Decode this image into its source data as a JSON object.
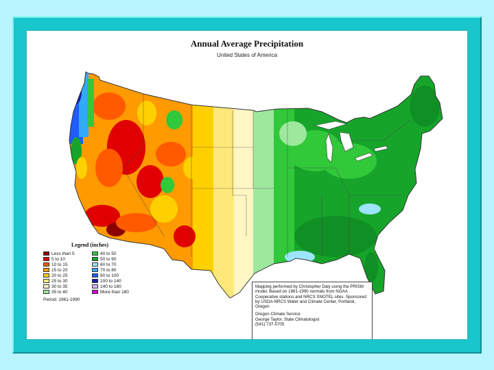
{
  "title": "Annual Average Precipitation",
  "subtitle": "United States of America",
  "legend": {
    "title": "Legend (inches)",
    "period": "Period: 1961-1990",
    "items": [
      {
        "label": "Less than 5",
        "color": "#8b0000"
      },
      {
        "label": "5 to 10",
        "color": "#e00000"
      },
      {
        "label": "10 to 15",
        "color": "#ff5a00"
      },
      {
        "label": "15 to 20",
        "color": "#ff9a00"
      },
      {
        "label": "20 to 25",
        "color": "#ffd000"
      },
      {
        "label": "25 to 30",
        "color": "#ffe87a"
      },
      {
        "label": "30 to 35",
        "color": "#fff6c4"
      },
      {
        "label": "35 to 40",
        "color": "#9ee89e"
      },
      {
        "label": "40 to 50",
        "color": "#31c83a"
      },
      {
        "label": "50 to 60",
        "color": "#16a52a"
      },
      {
        "label": "60 to 70",
        "color": "#9de4ff"
      },
      {
        "label": "70 to 80",
        "color": "#33a8ff"
      },
      {
        "label": "80 to 100",
        "color": "#1f5bff"
      },
      {
        "label": "100 to 140",
        "color": "#1b1bb0"
      },
      {
        "label": "140 to 180",
        "color": "#d9b3ff"
      },
      {
        "label": "More than 180",
        "color": "#d000d0"
      }
    ]
  },
  "note": {
    "text": "Mapping performed by Christopher Daly using the PRISM model. Based on 1961-1990 normals from NOAA Cooperative stations and NRCS SNOTEL sites. Sponsored by USDA-NRCS Water and Climate Center, Portland, Oregon",
    "credit_lines": [
      "Oregon Climate Service",
      "George Taylor, State Climatologist",
      "(541) 737-5705"
    ]
  },
  "colors": {
    "frame": "#18c6cc",
    "background": "#b9f5ff",
    "panel": "#ffffff"
  }
}
